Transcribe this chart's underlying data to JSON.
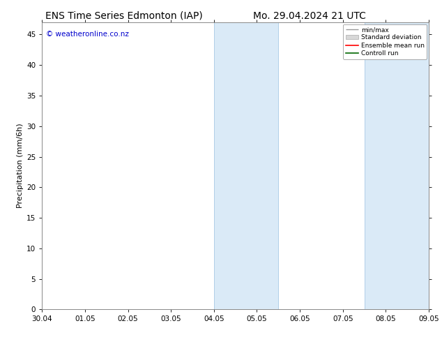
{
  "title_left": "ENS Time Series Edmonton (IAP)",
  "title_right": "Mo. 29.04.2024 21 UTC",
  "ylabel": "Precipitation (mm/6h)",
  "watermark": "© weatheronline.co.nz",
  "watermark_color": "#0000cc",
  "xlim_left": 0,
  "xlim_right": 9,
  "ylim_bottom": 0,
  "ylim_top": 47,
  "yticks": [
    0,
    5,
    10,
    15,
    20,
    25,
    30,
    35,
    40,
    45
  ],
  "xtick_labels": [
    "30.04",
    "01.05",
    "02.05",
    "03.05",
    "04.05",
    "05.05",
    "06.05",
    "07.05",
    "08.05",
    "09.05"
  ],
  "xtick_positions": [
    0,
    1,
    2,
    3,
    4,
    5,
    6,
    7,
    8,
    9
  ],
  "shade_bands": [
    {
      "xmin": 4.0,
      "xmax": 5.5
    },
    {
      "xmin": 7.5,
      "xmax": 9.0
    }
  ],
  "shade_color": "#daeaf7",
  "shade_alpha": 1.0,
  "band_edge_color": "#b0cfe8",
  "legend_labels": [
    "min/max",
    "Standard deviation",
    "Ensemble mean run",
    "Controll run"
  ],
  "legend_colors": [
    "#999999",
    "#cccccc",
    "#ff0000",
    "#006600"
  ],
  "background_color": "#ffffff",
  "title_fontsize": 10,
  "tick_fontsize": 7.5,
  "ylabel_fontsize": 8
}
